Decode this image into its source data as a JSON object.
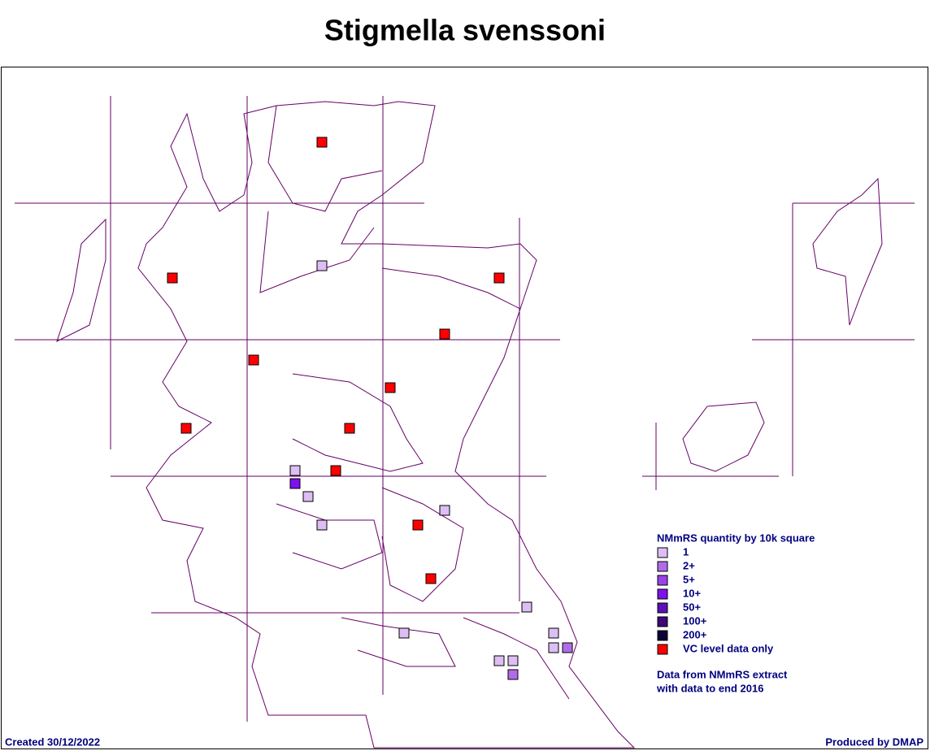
{
  "title": "Stigmella svenssoni",
  "legend": {
    "title": "NMmRS quantity by 10k square",
    "items": [
      {
        "label": "1",
        "color": "#dcbef4"
      },
      {
        "label": "2+",
        "color": "#b06ce8"
      },
      {
        "label": "5+",
        "color": "#9a42ea"
      },
      {
        "label": "10+",
        "color": "#7f10f0"
      },
      {
        "label": "50+",
        "color": "#5c10b8"
      },
      {
        "label": "100+",
        "color": "#3c0878"
      },
      {
        "label": "200+",
        "color": "#0c0438"
      },
      {
        "label": "VC level data only",
        "color": "#ff0000"
      }
    ]
  },
  "note": [
    "Data from NMmRS extract",
    "with data to end 2016"
  ],
  "footer": {
    "created": "Created 30/12/2022",
    "produced": "Produced by DMAP"
  }
}
